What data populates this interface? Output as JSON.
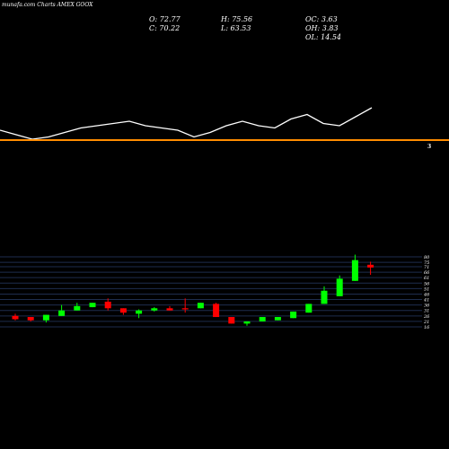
{
  "header": {
    "brand": "munafa.com",
    "title": "Charts AMEX GOOX",
    "open": "O: 72.77",
    "close": "C: 70.22",
    "high": "H: 75.56",
    "low": "L: 63.53",
    "oc": "OC: 3.63",
    "oh": "OH: 3.83",
    "ol": "OL: 14.54"
  },
  "marker_label": "3",
  "colors": {
    "background": "#000000",
    "up": "#00ff00",
    "down": "#ff0000",
    "orange_line": "#ff8c00",
    "grid": "#1e2d4e",
    "text": "#ffffff"
  },
  "chart_data": {
    "type": "candlestick",
    "ylim": [
      16,
      80
    ],
    "y_ticks": [
      "80",
      "75",
      "71",
      "66",
      "61",
      "56",
      "51",
      "46",
      "41",
      "36",
      "31",
      "26",
      "21",
      "16"
    ],
    "candles": [
      {
        "o": 26,
        "c": 23,
        "h": 28,
        "l": 22
      },
      {
        "o": 25,
        "c": 22,
        "h": 25,
        "l": 21
      },
      {
        "o": 22,
        "c": 27,
        "h": 27,
        "l": 20
      },
      {
        "o": 26,
        "c": 31,
        "h": 36,
        "l": 26
      },
      {
        "o": 31,
        "c": 35,
        "h": 38,
        "l": 31
      },
      {
        "o": 34,
        "c": 38,
        "h": 38,
        "l": 34
      },
      {
        "o": 39,
        "c": 33,
        "h": 42,
        "l": 31
      },
      {
        "o": 33,
        "c": 29,
        "h": 33,
        "l": 27
      },
      {
        "o": 28,
        "c": 31,
        "h": 32,
        "l": 24
      },
      {
        "o": 31,
        "c": 33,
        "h": 34,
        "l": 30
      },
      {
        "o": 33,
        "c": 31,
        "h": 35,
        "l": 31
      },
      {
        "o": 33,
        "c": 32,
        "h": 42,
        "l": 29
      },
      {
        "o": 33,
        "c": 38,
        "h": 38,
        "l": 33
      },
      {
        "o": 37,
        "c": 25,
        "h": 38,
        "l": 25
      },
      {
        "o": 25,
        "c": 19,
        "h": 25,
        "l": 19
      },
      {
        "o": 19,
        "c": 21,
        "h": 21,
        "l": 17
      },
      {
        "o": 21,
        "c": 25,
        "h": 25,
        "l": 21
      },
      {
        "o": 22,
        "c": 25,
        "h": 25,
        "l": 22
      },
      {
        "o": 24,
        "c": 30,
        "h": 30,
        "l": 24
      },
      {
        "o": 29,
        "c": 37,
        "h": 37,
        "l": 29
      },
      {
        "o": 37,
        "c": 49,
        "h": 53,
        "l": 37
      },
      {
        "o": 44,
        "c": 60,
        "h": 63,
        "l": 44
      },
      {
        "o": 58,
        "c": 77,
        "h": 82,
        "l": 58
      },
      {
        "o": 72.77,
        "c": 70.22,
        "h": 75.56,
        "l": 63.53
      }
    ],
    "overlay_line": [
      36,
      34,
      32,
      33,
      35,
      37,
      38,
      39,
      40,
      38,
      37,
      36,
      33,
      35,
      38,
      40,
      38,
      37,
      41,
      43,
      39,
      38,
      42,
      46
    ]
  }
}
